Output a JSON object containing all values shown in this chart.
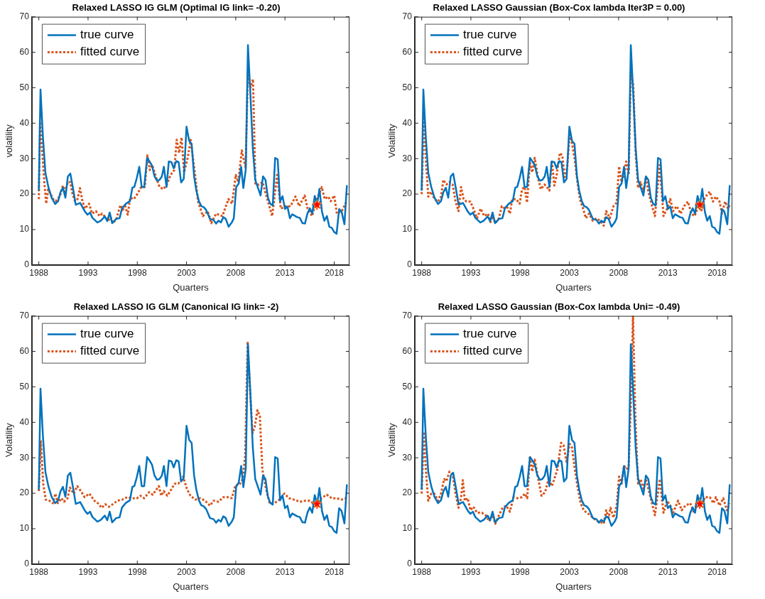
{
  "chart_data": [
    {
      "type": "line",
      "title": "Relaxed LASSO IG GLM (Optimal IG link= -0.20)",
      "xlabel": "Quarters",
      "ylabel": "volatility",
      "xlim": [
        1987.3,
        2019.55
      ],
      "xticks": [
        1988,
        1993,
        1998,
        2003,
        2008,
        2013,
        2018
      ],
      "ylim": [
        0,
        70
      ],
      "yticks": [
        0,
        10,
        20,
        30,
        40,
        50,
        60,
        70
      ],
      "grid": false,
      "legend": "top left",
      "series": [
        {
          "name": "true curve",
          "color": "#0072bd",
          "line_style": "solid",
          "x": [
            1988,
            1988.17,
            1988.42,
            1988.67,
            1988.97,
            1989.3,
            1989.66,
            1989.96,
            1990.2,
            1990.45,
            1990.7,
            1990.95,
            1991.2,
            1991.45,
            1991.75,
            1992.2,
            1992.7,
            1992.95,
            1993.2,
            1993.45,
            1993.95,
            1994.3,
            1994.7,
            1994.95,
            1995.2,
            1995.45,
            1995.85,
            1996.2,
            1996.45,
            1996.85,
            1997.25,
            1997.5,
            1997.7,
            1997.95,
            1998.2,
            1998.45,
            1998.7,
            1999,
            1999.25,
            1999.5,
            1999.75,
            2000,
            2000.25,
            2000.5,
            2000.7,
            2000.97,
            2001.2,
            2001.47,
            2001.7,
            2001.96,
            2002.2,
            2002.45,
            2002.72,
            2003,
            2003.27,
            2003.52,
            2003.77,
            2004,
            2004.26,
            2004.5,
            2004.76,
            2005,
            2005.38,
            2005.75,
            2006,
            2006.24,
            2006.49,
            2006.74,
            2006.99,
            2007.28,
            2007.6,
            2007.8,
            2008.05,
            2008.3,
            2008.55,
            2008.77,
            2009.02,
            2009.24,
            2009.49,
            2009.73,
            2009.98,
            2010.23,
            2010.52,
            2010.77,
            2011.02,
            2011.27,
            2011.5,
            2011.76,
            2012,
            2012.26,
            2012.5,
            2012.75,
            2013,
            2013.25,
            2013.5,
            2013.74,
            2014.24,
            2014.5,
            2014.78,
            2015.03,
            2015.28,
            2015.52,
            2015.77,
            2016.02,
            2016.27,
            2016.5,
            2016.76,
            2017,
            2017.26,
            2017.5,
            2017.75,
            2018,
            2018.24,
            2018.5,
            2018.75,
            2019.04,
            2019.29
          ],
          "values": [
            21,
            49.5,
            36,
            26,
            22,
            19,
            17.2,
            18,
            20.5,
            21.8,
            19,
            25,
            25.8,
            22,
            17,
            17.5,
            15,
            14.2,
            14.8,
            13.3,
            12,
            12.5,
            13.7,
            12.4,
            14.8,
            11.8,
            13,
            13.2,
            16,
            17.3,
            18,
            21.8,
            22,
            24.5,
            27.7,
            22,
            22,
            30.2,
            29.2,
            28,
            25,
            23.8,
            24,
            25,
            27.7,
            22,
            29.2,
            29,
            27.3,
            29.3,
            29,
            23.3,
            24.3,
            39,
            35,
            34.2,
            25,
            21,
            18,
            16.6,
            16.3,
            15.5,
            13,
            12.7,
            11.7,
            12.5,
            12,
            13.5,
            13,
            10.8,
            12,
            13.2,
            22,
            23,
            27.7,
            21.7,
            27,
            62,
            48,
            33,
            24,
            22,
            19.6,
            25,
            24,
            19,
            17.3,
            16.8,
            30.2,
            29.8,
            18,
            19.4,
            15.8,
            16.5,
            13.2,
            14.3,
            13.5,
            13.3,
            11.8,
            11.7,
            14.5,
            16,
            14.5,
            19.5,
            17,
            21.5,
            15,
            12.5,
            13.8,
            10.8,
            10.5,
            9.3,
            8.8,
            15.8,
            15,
            11.5,
            22.5
          ]
        },
        {
          "name": "fitted curve",
          "color": "#d95319",
          "line_style": "dotted",
          "x": [
            1988,
            1988.12,
            1988.3,
            1988.57,
            1988.75,
            1988.95,
            1989.2,
            1989.45,
            1989.7,
            1989.95,
            1990.2,
            1990.44,
            1990.7,
            1990.94,
            1991.18,
            1991.43,
            1991.68,
            1991.93,
            1992.18,
            1992.43,
            1992.68,
            1993.1,
            1993.42,
            1993.8,
            1994.17,
            1994.42,
            1994.67,
            1995.04,
            1995.29,
            1995.54,
            1995.9,
            1996.28,
            1996.53,
            1996.78,
            1997.03,
            1997.28,
            1997.65,
            1998,
            1998.4,
            1998.77,
            1999.02,
            1999.27,
            1999.52,
            1999.9,
            2000.26,
            2000.64,
            2001.01,
            2001.38,
            2001.76,
            2002,
            2002.25,
            2002.5,
            2002.75,
            2003.12,
            2003.42,
            2003.9,
            2004.16,
            2004.66,
            2005.15,
            2005.52,
            2006,
            2006.64,
            2007.26,
            2007.63,
            2008,
            2008.25,
            2008.62,
            2009,
            2009.24,
            2009.5,
            2009.75,
            2010,
            2010.35,
            2010.72,
            2011.2,
            2011.7,
            2012.2,
            2012.58,
            2013.07,
            2013.57,
            2014.06,
            2014.44,
            2015,
            2015.3,
            2015.75,
            2016.17,
            2016.74,
            2017.03,
            2017.4,
            2017.65,
            2018,
            2018.27,
            2018.77,
            2019.26
          ],
          "values": [
            18.6,
            40.4,
            34,
            23,
            17.3,
            21.3,
            20,
            18.6,
            18,
            18.6,
            20,
            22.4,
            20.7,
            23.4,
            23.4,
            20,
            18,
            18.6,
            21.7,
            18,
            15.9,
            17.3,
            14.5,
            15.2,
            13.8,
            14.5,
            13.8,
            12.5,
            13.5,
            11.8,
            13.2,
            16.9,
            15.6,
            16.6,
            14.2,
            19,
            18.6,
            20,
            22,
            22,
            30.9,
            26.8,
            28.2,
            24.8,
            22,
            21.4,
            22.7,
            25.4,
            26.8,
            35.3,
            31.6,
            36,
            26.1,
            30.2,
            35.3,
            24.8,
            18,
            13.8,
            15.2,
            11.8,
            14.5,
            13.8,
            18.6,
            17.3,
            25.4,
            23.4,
            32.3,
            27.5,
            54.6,
            50,
            52.4,
            22.7,
            22.7,
            23.4,
            18.6,
            13.8,
            25.4,
            15.9,
            16.6,
            16.6,
            19.3,
            16.6,
            19.6,
            15.9,
            13.8,
            18,
            22,
            18.6,
            19.3,
            18,
            19.6,
            14.5,
            15.2,
            18
          ]
        },
        {
          "type": "scatter",
          "marker": "star",
          "color": "#ff0000",
          "x": [
            2016.25
          ],
          "values": [
            17
          ]
        }
      ]
    },
    {
      "type": "line",
      "title": "Relaxed LASSO Gaussian (Box-Cox lambda Iter3P = 0.00)",
      "xlabel": "Quarters",
      "ylabel": "Volatility",
      "xlim": [
        1987.3,
        2019.55
      ],
      "xticks": [
        1988,
        1993,
        1998,
        2003,
        2008,
        2013,
        2018
      ],
      "ylim": [
        0,
        70
      ],
      "yticks": [
        0,
        10,
        20,
        30,
        40,
        50,
        60,
        70
      ],
      "grid": false,
      "legend": "top left",
      "series": [
        {
          "name": "true curve",
          "color": "#0072bd",
          "line_style": "solid",
          "x": [
            1988,
            1988.17,
            1988.42,
            1988.67,
            1988.97,
            1989.3,
            1989.66,
            1989.96,
            1990.2,
            1990.45,
            1990.7,
            1990.95,
            1991.2,
            1991.45,
            1991.75,
            1992.2,
            1992.7,
            1992.95,
            1993.2,
            1993.45,
            1993.95,
            1994.3,
            1994.7,
            1994.95,
            1995.2,
            1995.45,
            1995.85,
            1996.2,
            1996.45,
            1996.85,
            1997.25,
            1997.5,
            1997.7,
            1997.95,
            1998.2,
            1998.45,
            1998.7,
            1999,
            1999.25,
            1999.5,
            1999.75,
            2000,
            2000.25,
            2000.5,
            2000.7,
            2000.97,
            2001.2,
            2001.47,
            2001.7,
            2001.96,
            2002.2,
            2002.45,
            2002.72,
            2003,
            2003.27,
            2003.52,
            2003.77,
            2004,
            2004.26,
            2004.5,
            2004.76,
            2005,
            2005.38,
            2005.75,
            2006,
            2006.24,
            2006.49,
            2006.74,
            2006.99,
            2007.28,
            2007.6,
            2007.8,
            2008.05,
            2008.3,
            2008.55,
            2008.77,
            2009.02,
            2009.24,
            2009.49,
            2009.73,
            2009.98,
            2010.23,
            2010.52,
            2010.77,
            2011.02,
            2011.27,
            2011.5,
            2011.76,
            2012,
            2012.26,
            2012.5,
            2012.75,
            2013,
            2013.25,
            2013.5,
            2013.74,
            2014.24,
            2014.5,
            2014.78,
            2015.03,
            2015.28,
            2015.52,
            2015.77,
            2016.02,
            2016.27,
            2016.5,
            2016.76,
            2017,
            2017.26,
            2017.5,
            2017.75,
            2018,
            2018.24,
            2018.5,
            2018.75,
            2019.04,
            2019.29
          ],
          "values": [
            21,
            49.5,
            36,
            26,
            22,
            19,
            17.2,
            18,
            20.5,
            21.8,
            19,
            25,
            25.8,
            22,
            17,
            17.5,
            15,
            14.2,
            14.8,
            13.3,
            12,
            12.5,
            13.7,
            12.4,
            14.8,
            11.8,
            13,
            13.2,
            16,
            17.3,
            18,
            21.8,
            22,
            24.5,
            27.7,
            22,
            22,
            30.2,
            29.2,
            28,
            25,
            23.8,
            24,
            25,
            27.7,
            22,
            29.2,
            29,
            27.3,
            29.3,
            29,
            23.3,
            24.3,
            39,
            35,
            34.2,
            25,
            21,
            18,
            16.6,
            16.3,
            15.5,
            13,
            12.7,
            11.7,
            12.5,
            12,
            13.5,
            13,
            10.8,
            12,
            13.2,
            22,
            23,
            27.7,
            21.7,
            27,
            62,
            48,
            33,
            24,
            22,
            19.6,
            25,
            24,
            19,
            17.3,
            16.8,
            30.2,
            29.8,
            18,
            19.4,
            15.8,
            16.5,
            13.2,
            14.3,
            13.5,
            13.3,
            11.8,
            11.7,
            14.5,
            16,
            14.5,
            19.5,
            17,
            21.5,
            15,
            12.5,
            13.8,
            10.8,
            10.5,
            9.3,
            8.8,
            15.8,
            15,
            11.5,
            22.5
          ]
        },
        {
          "name": "fitted curve",
          "color": "#d95319",
          "line_style": "dotted",
          "x": [
            1988,
            1988.22,
            1988.42,
            1988.67,
            1988.97,
            1989.29,
            1989.66,
            1989.96,
            1990.2,
            1990.52,
            1990.82,
            1991.14,
            1991.44,
            1991.74,
            1992,
            1992.26,
            1992.55,
            1992.95,
            1993.25,
            1993.62,
            1993.99,
            1994.36,
            1994.73,
            1994.98,
            1995.23,
            1995.47,
            1995.85,
            1996.14,
            1996.47,
            1996.71,
            1996.96,
            1997.2,
            1997.58,
            1997.95,
            1998.2,
            1998.45,
            1998.7,
            1998.99,
            1999.23,
            1999.48,
            1999.8,
            2000.1,
            2000.48,
            2000.72,
            2000.97,
            2001.22,
            2001.47,
            2001.71,
            2002.03,
            2002.28,
            2002.53,
            2002.78,
            2003.02,
            2003.27,
            2003.52,
            2003.82,
            2004.06,
            2004.39,
            2004.68,
            2005,
            2005.38,
            2005.75,
            2006.12,
            2006.49,
            2006.74,
            2007.11,
            2007.48,
            2007.8,
            2008.05,
            2008.3,
            2008.55,
            2008.77,
            2009.02,
            2009.24,
            2009.49,
            2009.73,
            2009.98,
            2010.23,
            2010.52,
            2010.77,
            2011.02,
            2011.4,
            2011.69,
            2012.18,
            2012.56,
            2012.93,
            2013.25,
            2013.54,
            2013.9,
            2014.29,
            2014.66,
            2015.03,
            2015.4,
            2015.72,
            2016.1,
            2016.39,
            2016.76,
            2017.26,
            2017.58,
            2017.88,
            2018.25,
            2018.5,
            2018.82,
            2019.11,
            2019.29
          ],
          "values": [
            20,
            41.8,
            30,
            19.3,
            20.7,
            18.6,
            17.9,
            19.3,
            24,
            22.7,
            23.4,
            22.7,
            17.9,
            15.2,
            22,
            18.6,
            17.9,
            17.9,
            15.9,
            13.2,
            15.9,
            13.8,
            14.5,
            12.1,
            13.8,
            11.8,
            13.2,
            16.6,
            15.9,
            16.2,
            14.5,
            18.6,
            18.6,
            17.3,
            21.4,
            22,
            17.6,
            28.9,
            26.1,
            30.2,
            24.8,
            21.4,
            22.7,
            22,
            21,
            29.5,
            22.4,
            25.4,
            31.6,
            30.9,
            24.8,
            27.5,
            36.7,
            34.3,
            30.2,
            23.4,
            18.6,
            15.9,
            13.2,
            14.5,
            12.5,
            13.2,
            12.5,
            11.1,
            15.2,
            13.2,
            16.6,
            17.6,
            27.8,
            23.4,
            25.4,
            29.2,
            25.4,
            54.4,
            50.7,
            31.6,
            21.7,
            23.4,
            20.7,
            24.8,
            20.7,
            16.6,
            13.8,
            28.2,
            13.8,
            15.9,
            18.6,
            15.2,
            16.6,
            14.5,
            16.6,
            17.9,
            14.5,
            13.8,
            16.6,
            15.2,
            19,
            20.7,
            17.9,
            19.3,
            17.9,
            14.5,
            17.9,
            15.9,
            16.9
          ]
        },
        {
          "type": "scatter",
          "marker": "star",
          "color": "#ff0000",
          "x": [
            2016.25
          ],
          "values": [
            17
          ]
        }
      ]
    },
    {
      "type": "line",
      "title": "Relaxed LASSO IG GLM (Canonical IG link= -2)",
      "xlabel": "Quarters",
      "ylabel": "Volatility",
      "xlim": [
        1987.3,
        2019.55
      ],
      "xticks": [
        1988,
        1993,
        1998,
        2003,
        2008,
        2013,
        2018
      ],
      "ylim": [
        0,
        70
      ],
      "yticks": [
        0,
        10,
        20,
        30,
        40,
        50,
        60,
        70
      ],
      "grid": false,
      "legend": "top left",
      "series": [
        {
          "name": "true curve",
          "color": "#0072bd",
          "line_style": "solid",
          "x": [
            1988,
            1988.17,
            1988.42,
            1988.67,
            1988.97,
            1989.3,
            1989.66,
            1989.96,
            1990.2,
            1990.45,
            1990.7,
            1990.95,
            1991.2,
            1991.45,
            1991.75,
            1992.2,
            1992.7,
            1992.95,
            1993.2,
            1993.45,
            1993.95,
            1994.3,
            1994.7,
            1994.95,
            1995.2,
            1995.45,
            1995.85,
            1996.2,
            1996.45,
            1996.85,
            1997.25,
            1997.5,
            1997.7,
            1997.95,
            1998.2,
            1998.45,
            1998.7,
            1999,
            1999.25,
            1999.5,
            1999.75,
            2000,
            2000.25,
            2000.5,
            2000.7,
            2000.97,
            2001.2,
            2001.47,
            2001.7,
            2001.96,
            2002.2,
            2002.45,
            2002.72,
            2003,
            2003.27,
            2003.52,
            2003.77,
            2004,
            2004.26,
            2004.5,
            2004.76,
            2005,
            2005.38,
            2005.75,
            2006,
            2006.24,
            2006.49,
            2006.74,
            2006.99,
            2007.28,
            2007.6,
            2007.8,
            2008.05,
            2008.3,
            2008.55,
            2008.77,
            2009.02,
            2009.24,
            2009.49,
            2009.73,
            2009.98,
            2010.23,
            2010.52,
            2010.77,
            2011.02,
            2011.27,
            2011.5,
            2011.76,
            2012,
            2012.26,
            2012.5,
            2012.75,
            2013,
            2013.25,
            2013.5,
            2013.74,
            2014.24,
            2014.5,
            2014.78,
            2015.03,
            2015.28,
            2015.52,
            2015.77,
            2016.02,
            2016.27,
            2016.5,
            2016.76,
            2017,
            2017.26,
            2017.5,
            2017.75,
            2018,
            2018.24,
            2018.5,
            2018.75,
            2019.04,
            2019.29
          ],
          "values": [
            21,
            49.5,
            36,
            26,
            22,
            19,
            17.2,
            18,
            20.5,
            21.8,
            19,
            25,
            25.8,
            22,
            17,
            17.5,
            15,
            14.2,
            14.8,
            13.3,
            12,
            12.5,
            13.7,
            12.4,
            14.8,
            11.8,
            13,
            13.2,
            16,
            17.3,
            18,
            21.8,
            22,
            24.5,
            27.7,
            22,
            22,
            30.2,
            29.2,
            28,
            25,
            23.8,
            24,
            25,
            27.7,
            22,
            29.2,
            29,
            27.3,
            29.3,
            29,
            23.3,
            24.3,
            39,
            35,
            34.2,
            25,
            21,
            18,
            16.6,
            16.3,
            15.5,
            13,
            12.7,
            11.7,
            12.5,
            12,
            13.5,
            13,
            10.8,
            12,
            13.2,
            22,
            23,
            27.7,
            21.7,
            27,
            62,
            48,
            33,
            24,
            22,
            19.6,
            25,
            24,
            19,
            17.3,
            16.8,
            30.2,
            29.8,
            18,
            19.4,
            15.8,
            16.5,
            13.2,
            14.3,
            13.5,
            13.3,
            11.8,
            11.7,
            14.5,
            16,
            14.5,
            19.5,
            17,
            21.5,
            15,
            12.5,
            13.8,
            10.8,
            10.5,
            9.3,
            8.8,
            15.8,
            15,
            11.5,
            22.5
          ]
        },
        {
          "name": "fitted curve",
          "color": "#d95319",
          "line_style": "dotted",
          "x": [
            1988,
            1988.2,
            1988.45,
            1988.7,
            1989.06,
            1989.43,
            1989.68,
            1989.93,
            1990.3,
            1990.55,
            1990.92,
            1991.16,
            1991.54,
            1991.9,
            1992.28,
            1992.65,
            1993.14,
            1993.64,
            1994,
            1994.38,
            1994.75,
            1995.12,
            1995.5,
            1995.99,
            1996.48,
            1996.98,
            1997.47,
            1997.96,
            1998.33,
            1998.7,
            1999.2,
            1999.57,
            2000.19,
            2000.43,
            2000.68,
            2001.05,
            2001.43,
            2001.8,
            2002.17,
            2002.66,
            2003.03,
            2003.4,
            2003.9,
            2004.4,
            2004.89,
            2005.38,
            2005.75,
            2006.25,
            2006.74,
            2007.24,
            2007.6,
            2007.98,
            2008.35,
            2008.72,
            2008.96,
            2009.21,
            2009.46,
            2009.7,
            2009.95,
            2010.2,
            2010.45,
            2010.7,
            2011.07,
            2011.44,
            2011.94,
            2012.43,
            2012.93,
            2013.42,
            2013.91,
            2014.53,
            2015.02,
            2015.51,
            2016,
            2016.5,
            2017.24,
            2017.74,
            2018.23,
            2018.73,
            2019.22
          ],
          "values": [
            20.6,
            34.9,
            22.7,
            18.2,
            17.9,
            17.2,
            19.9,
            17.2,
            18.6,
            17.6,
            18.6,
            21.6,
            19.9,
            22,
            20.6,
            18.9,
            19.9,
            17.9,
            17.2,
            15.9,
            16.9,
            16.2,
            16.9,
            17.9,
            18.2,
            18.9,
            18.6,
            18.6,
            19.3,
            18.6,
            20.3,
            19.6,
            22,
            19.3,
            20.6,
            19.3,
            21,
            22.7,
            22.7,
            24.7,
            21.3,
            19.3,
            18.2,
            18.6,
            17.9,
            16.5,
            17.9,
            17.6,
            18.9,
            18.9,
            18.6,
            22.3,
            22.3,
            24,
            30.8,
            62.8,
            48.5,
            36.9,
            39,
            43.4,
            41.7,
            26.7,
            21.3,
            17.2,
            17.2,
            18.2,
            19.9,
            18.6,
            18.2,
            17.6,
            17.9,
            17.9,
            16.9,
            18.2,
            19.6,
            18.6,
            18.6,
            18.2,
            18.6
          ]
        },
        {
          "type": "scatter",
          "marker": "star",
          "color": "#ff0000",
          "x": [
            2016.25
          ],
          "values": [
            17
          ]
        }
      ]
    },
    {
      "type": "line",
      "title": "Relaxed LASSO Gaussian (Box-Cox lambda Uni= -0.49)",
      "xlabel": "Quarters",
      "ylabel": "Volatility",
      "xlim": [
        1987.3,
        2019.55
      ],
      "xticks": [
        1988,
        1993,
        1998,
        2003,
        2008,
        2013,
        2018
      ],
      "ylim": [
        0,
        70
      ],
      "yticks": [
        0,
        10,
        20,
        30,
        40,
        50,
        60,
        70
      ],
      "grid": false,
      "legend": "top left",
      "series": [
        {
          "name": "true curve",
          "color": "#0072bd",
          "line_style": "solid",
          "x": [
            1988,
            1988.17,
            1988.42,
            1988.67,
            1988.97,
            1989.3,
            1989.66,
            1989.96,
            1990.2,
            1990.45,
            1990.7,
            1990.95,
            1991.2,
            1991.45,
            1991.75,
            1992.2,
            1992.7,
            1992.95,
            1993.2,
            1993.45,
            1993.95,
            1994.3,
            1994.7,
            1994.95,
            1995.2,
            1995.45,
            1995.85,
            1996.2,
            1996.45,
            1996.85,
            1997.25,
            1997.5,
            1997.7,
            1997.95,
            1998.2,
            1998.45,
            1998.7,
            1999,
            1999.25,
            1999.5,
            1999.75,
            2000,
            2000.25,
            2000.5,
            2000.7,
            2000.97,
            2001.2,
            2001.47,
            2001.7,
            2001.96,
            2002.2,
            2002.45,
            2002.72,
            2003,
            2003.27,
            2003.52,
            2003.77,
            2004,
            2004.26,
            2004.5,
            2004.76,
            2005,
            2005.38,
            2005.75,
            2006,
            2006.24,
            2006.49,
            2006.74,
            2006.99,
            2007.28,
            2007.6,
            2007.8,
            2008.05,
            2008.3,
            2008.55,
            2008.77,
            2009.02,
            2009.24,
            2009.49,
            2009.73,
            2009.98,
            2010.23,
            2010.52,
            2010.77,
            2011.02,
            2011.27,
            2011.5,
            2011.76,
            2012,
            2012.26,
            2012.5,
            2012.75,
            2013,
            2013.25,
            2013.5,
            2013.74,
            2014.24,
            2014.5,
            2014.78,
            2015.03,
            2015.28,
            2015.52,
            2015.77,
            2016.02,
            2016.27,
            2016.5,
            2016.76,
            2017,
            2017.26,
            2017.5,
            2017.75,
            2018,
            2018.24,
            2018.5,
            2018.75,
            2019.04,
            2019.29
          ],
          "values": [
            21,
            49.5,
            36,
            26,
            22,
            19,
            17.2,
            18,
            20.5,
            21.8,
            19,
            25,
            25.8,
            22,
            17,
            17.5,
            15,
            14.2,
            14.8,
            13.3,
            12,
            12.5,
            13.7,
            12.4,
            14.8,
            11.8,
            13,
            13.2,
            16,
            17.3,
            18,
            21.8,
            22,
            24.5,
            27.7,
            22,
            22,
            30.2,
            29.2,
            28,
            25,
            23.8,
            24,
            25,
            27.7,
            22,
            29.2,
            29,
            27.3,
            29.3,
            29,
            23.3,
            24.3,
            39,
            35,
            34.2,
            25,
            21,
            18,
            16.6,
            16.3,
            15.5,
            13,
            12.7,
            11.7,
            12.5,
            12,
            13.5,
            13,
            10.8,
            12,
            13.2,
            22,
            23,
            27.7,
            21.7,
            27,
            62,
            48,
            33,
            24,
            22,
            19.6,
            25,
            24,
            19,
            17.3,
            16.8,
            30.2,
            29.8,
            18,
            19.4,
            15.8,
            16.5,
            13.2,
            14.3,
            13.5,
            13.3,
            11.8,
            11.7,
            14.5,
            16,
            14.5,
            19.5,
            17,
            21.5,
            15,
            12.5,
            13.8,
            10.8,
            10.5,
            9.3,
            8.8,
            15.8,
            15,
            11.5,
            22.5
          ]
        },
        {
          "name": "fitted curve",
          "color": "#d95319",
          "line_style": "dotted",
          "x": [
            1988,
            1988.22,
            1988.42,
            1988.67,
            1988.97,
            1989.29,
            1989.66,
            1989.96,
            1990.28,
            1990.52,
            1990.82,
            1991.14,
            1991.44,
            1991.74,
            1992,
            1992.18,
            1992.38,
            1992.68,
            1992.95,
            1993.25,
            1993.62,
            1994.11,
            1994.49,
            1994.86,
            1995.23,
            1995.47,
            1995.85,
            1996.22,
            1996.59,
            1996.96,
            1997.33,
            1997.7,
            1998.2,
            1998.47,
            1998.72,
            1998.99,
            1999.23,
            1999.48,
            1999.8,
            2000.17,
            2000.54,
            2000.92,
            2001.22,
            2001.47,
            2001.79,
            2002.16,
            2002.4,
            2002.72,
            2003.02,
            2003.27,
            2003.52,
            2003.82,
            2004.14,
            2004.46,
            2004.76,
            2005.13,
            2005.5,
            2005.87,
            2006.24,
            2006.49,
            2006.74,
            2006.99,
            2007.18,
            2007.48,
            2007.8,
            2008.05,
            2008.3,
            2008.55,
            2008.77,
            2009.02,
            2009.24,
            2009.46,
            2009.71,
            2009.98,
            2010.23,
            2010.52,
            2010.77,
            2011.02,
            2011.32,
            2011.69,
            2012.18,
            2012.56,
            2012.93,
            2013.25,
            2013.54,
            2014.04,
            2014.41,
            2014.78,
            2015.28,
            2015.65,
            2016.1,
            2016.52,
            2016.76,
            2017.26,
            2017.63,
            2017.88,
            2018.25,
            2018.63,
            2019,
            2019.29
          ],
          "values": [
            19.9,
            37.3,
            26.8,
            17.9,
            19.9,
            19.9,
            17.9,
            19.9,
            24,
            23.4,
            26.1,
            25.4,
            19.9,
            15.9,
            18.6,
            23.7,
            17.9,
            18.6,
            15.2,
            16.2,
            14.5,
            14.5,
            13.8,
            12.1,
            13.8,
            11.4,
            13.8,
            15.9,
            16.5,
            14.8,
            18.9,
            18.6,
            18.9,
            19.9,
            18.6,
            30.5,
            26.1,
            29.5,
            24.7,
            19.3,
            20.3,
            24.4,
            22,
            24,
            26.8,
            34.2,
            33.6,
            28.8,
            33.9,
            32.9,
            27.4,
            22,
            17.2,
            15.2,
            14.5,
            13.8,
            12.8,
            12.1,
            11.8,
            11.4,
            15.2,
            13.1,
            15.9,
            13.1,
            16.5,
            24.7,
            22.7,
            27.8,
            26.8,
            27.4,
            45.1,
            70,
            40.4,
            22.7,
            24,
            21.3,
            24,
            21.3,
            17.9,
            13.8,
            24,
            14.5,
            17.9,
            16.5,
            14.5,
            17.9,
            15.2,
            16.5,
            17.2,
            14.5,
            18.9,
            16.9,
            18.9,
            18.9,
            17.2,
            18.9,
            16.5,
            18.6,
            15.2,
            17.2
          ]
        },
        {
          "type": "scatter",
          "marker": "star",
          "color": "#ff0000",
          "x": [
            2016.25
          ],
          "values": [
            17
          ]
        }
      ]
    }
  ]
}
